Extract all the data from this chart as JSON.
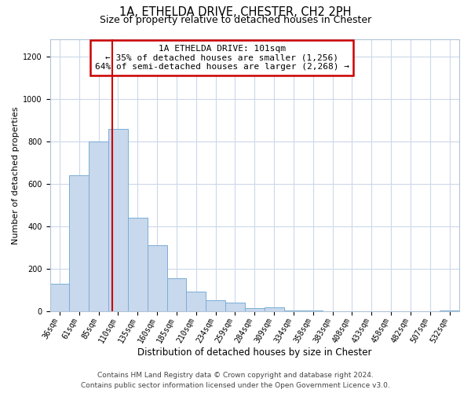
{
  "title": "1A, ETHELDA DRIVE, CHESTER, CH2 2PH",
  "subtitle": "Size of property relative to detached houses in Chester",
  "xlabel": "Distribution of detached houses by size in Chester",
  "ylabel": "Number of detached properties",
  "bar_labels": [
    "36sqm",
    "61sqm",
    "85sqm",
    "110sqm",
    "135sqm",
    "160sqm",
    "185sqm",
    "210sqm",
    "234sqm",
    "259sqm",
    "284sqm",
    "309sqm",
    "334sqm",
    "358sqm",
    "383sqm",
    "408sqm",
    "433sqm",
    "458sqm",
    "482sqm",
    "507sqm",
    "532sqm"
  ],
  "bar_values": [
    130,
    640,
    800,
    860,
    440,
    310,
    155,
    92,
    52,
    42,
    14,
    20,
    5,
    5,
    2,
    2,
    0,
    0,
    0,
    0,
    5
  ],
  "bar_color": "#c8d8ed",
  "bar_edge_color": "#7aaed6",
  "ylim": [
    0,
    1280
  ],
  "yticks": [
    0,
    200,
    400,
    600,
    800,
    1000,
    1200
  ],
  "vline_x_index": 2.72,
  "annotation_title": "1A ETHELDA DRIVE: 101sqm",
  "annotation_line1": "← 35% of detached houses are smaller (1,256)",
  "annotation_line2": "64% of semi-detached houses are larger (2,268) →",
  "annotation_box_color": "#ffffff",
  "annotation_box_edge": "#cc0000",
  "vline_color": "#cc0000",
  "footer1": "Contains HM Land Registry data © Crown copyright and database right 2024.",
  "footer2": "Contains public sector information licensed under the Open Government Licence v3.0.",
  "bg_color": "#ffffff",
  "grid_color": "#ccd8ea",
  "title_fontsize": 10.5,
  "subtitle_fontsize": 9,
  "xlabel_fontsize": 8.5,
  "ylabel_fontsize": 8,
  "tick_fontsize": 7,
  "annotation_fontsize": 8,
  "footer_fontsize": 6.5
}
